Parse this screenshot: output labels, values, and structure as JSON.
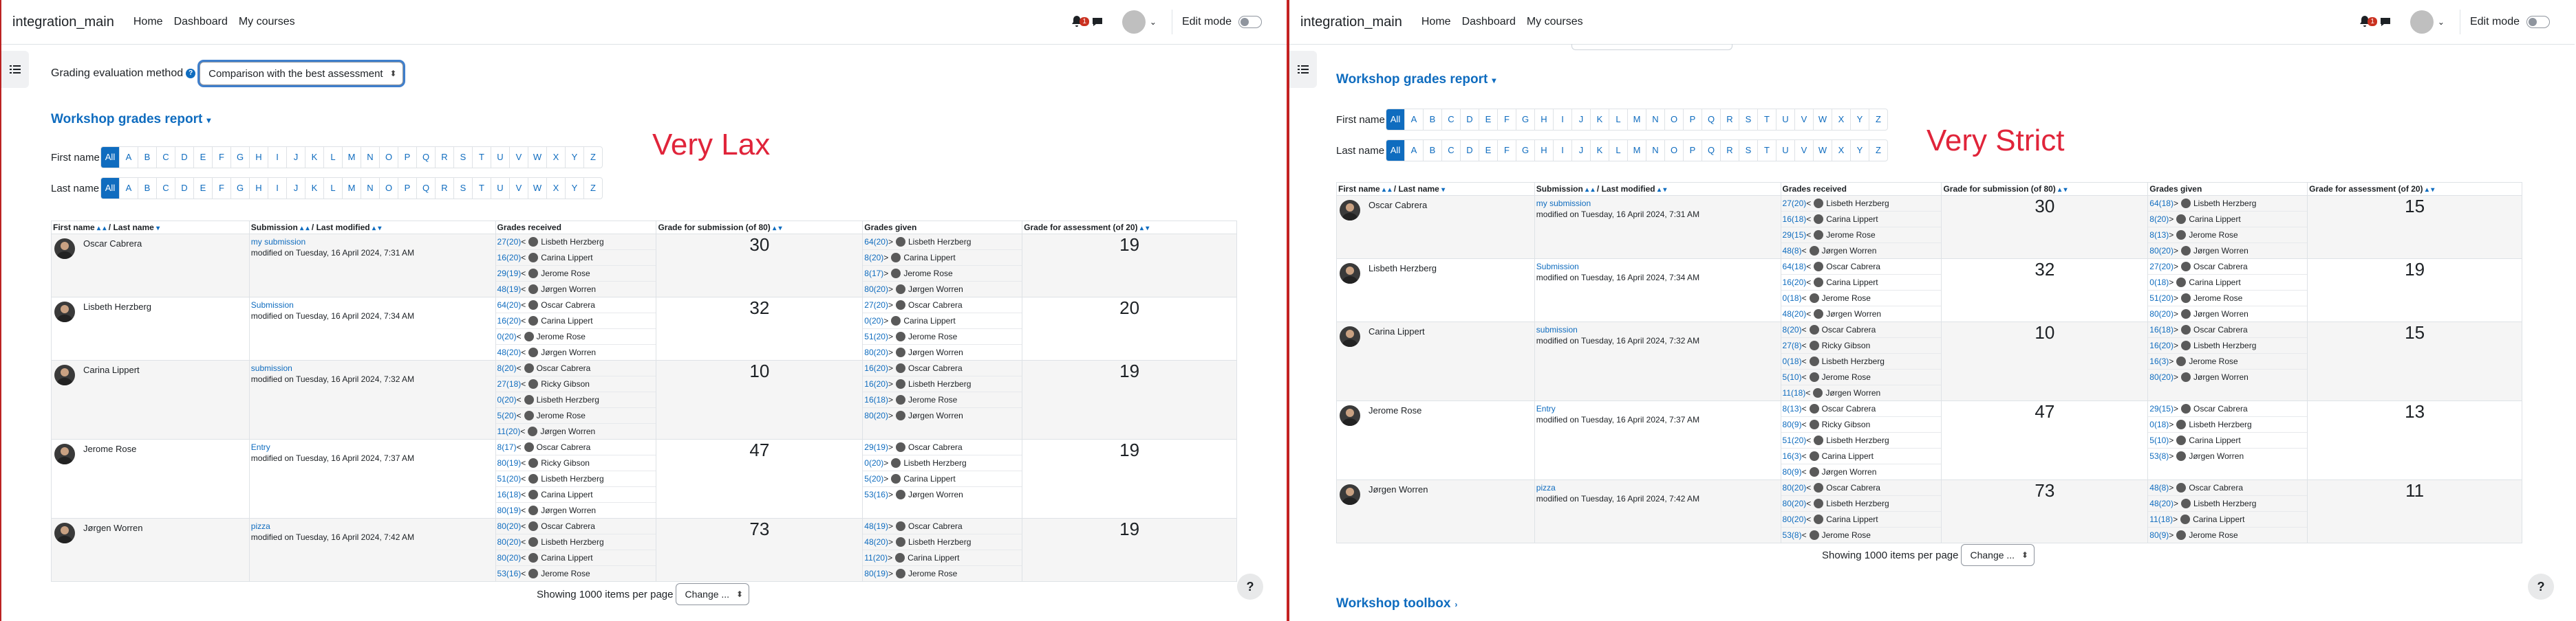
{
  "nav": {
    "site_name": "integration_main",
    "links": [
      "Home",
      "Dashboard",
      "My courses"
    ],
    "notification_count": "1",
    "edit_mode_label": "Edit mode"
  },
  "left": {
    "grading_method_label": "Grading evaluation method",
    "grading_method_value": "Comparison with the best assessment",
    "section_title": "Workshop grades report",
    "annotation": "Very Lax",
    "first_name_label": "First name",
    "last_name_label": "Last name",
    "letters": [
      "All",
      "A",
      "B",
      "C",
      "D",
      "E",
      "F",
      "G",
      "H",
      "I",
      "J",
      "K",
      "L",
      "M",
      "N",
      "O",
      "P",
      "Q",
      "R",
      "S",
      "T",
      "U",
      "V",
      "W",
      "X",
      "Y",
      "Z"
    ],
    "headers": {
      "first_name": "First name",
      "last_name": "/ Last name",
      "submission": "Submission",
      "last_modified": "/ Last modified",
      "grades_received": "Grades received",
      "grade_submission": "Grade for submission (of 80)",
      "grades_given": "Grades given",
      "grade_assessment": "Grade for assessment (of 20)"
    },
    "rows": [
      {
        "name": "Oscar Cabrera",
        "sub_title": "my submission",
        "modified": "modified on Tuesday, 16 April 2024, 7:31 AM",
        "received": [
          [
            "27",
            "(20)",
            "Lisbeth Herzberg"
          ],
          [
            "16",
            "(20)",
            "Carina Lippert"
          ],
          [
            "29",
            "(19)",
            "Jerome Rose"
          ],
          [
            "48",
            "(19)",
            "Jørgen Worren"
          ]
        ],
        "grade_sub": "30",
        "given": [
          [
            "64",
            "(20)",
            "Lisbeth Herzberg"
          ],
          [
            "8",
            "(20)",
            "Carina Lippert"
          ],
          [
            "8",
            "(17)",
            "Jerome Rose"
          ],
          [
            "80",
            "(20)",
            "Jørgen Worren"
          ]
        ],
        "grade_ass": "19"
      },
      {
        "name": "Lisbeth Herzberg",
        "sub_title": "Submission",
        "modified": "modified on Tuesday, 16 April 2024, 7:34 AM",
        "received": [
          [
            "64",
            "(20)",
            "Oscar Cabrera"
          ],
          [
            "16",
            "(20)",
            "Carina Lippert"
          ],
          [
            "0",
            "(20)",
            "Jerome Rose"
          ],
          [
            "48",
            "(20)",
            "Jørgen Worren"
          ]
        ],
        "grade_sub": "32",
        "given": [
          [
            "27",
            "(20)",
            "Oscar Cabrera"
          ],
          [
            "0",
            "(20)",
            "Carina Lippert"
          ],
          [
            "51",
            "(20)",
            "Jerome Rose"
          ],
          [
            "80",
            "(20)",
            "Jørgen Worren"
          ]
        ],
        "grade_ass": "20"
      },
      {
        "name": "Carina Lippert",
        "sub_title": "submission",
        "modified": "modified on Tuesday, 16 April 2024, 7:32 AM",
        "received": [
          [
            "8",
            "(20)",
            "Oscar Cabrera"
          ],
          [
            "27",
            "(18)",
            "Ricky Gibson"
          ],
          [
            "0",
            "(20)",
            "Lisbeth Herzberg"
          ],
          [
            "5",
            "(20)",
            "Jerome Rose"
          ],
          [
            "11",
            "(20)",
            "Jørgen Worren"
          ]
        ],
        "grade_sub": "10",
        "given": [
          [
            "16",
            "(20)",
            "Oscar Cabrera"
          ],
          [
            "16",
            "(20)",
            "Lisbeth Herzberg"
          ],
          [
            "16",
            "(18)",
            "Jerome Rose"
          ],
          [
            "80",
            "(20)",
            "Jørgen Worren"
          ]
        ],
        "grade_ass": "19"
      },
      {
        "name": "Jerome Rose",
        "sub_title": "Entry",
        "modified": "modified on Tuesday, 16 April 2024, 7:37 AM",
        "received": [
          [
            "8",
            "(17)",
            "Oscar Cabrera"
          ],
          [
            "80",
            "(19)",
            "Ricky Gibson"
          ],
          [
            "51",
            "(20)",
            "Lisbeth Herzberg"
          ],
          [
            "16",
            "(18)",
            "Carina Lippert"
          ],
          [
            "80",
            "(19)",
            "Jørgen Worren"
          ]
        ],
        "grade_sub": "47",
        "given": [
          [
            "29",
            "(19)",
            "Oscar Cabrera"
          ],
          [
            "0",
            "(20)",
            "Lisbeth Herzberg"
          ],
          [
            "5",
            "(20)",
            "Carina Lippert"
          ],
          [
            "53",
            "(16)",
            "Jørgen Worren"
          ]
        ],
        "grade_ass": "19"
      },
      {
        "name": "Jørgen Worren",
        "sub_title": "pizza",
        "modified": "modified on Tuesday, 16 April 2024, 7:42 AM",
        "received": [
          [
            "80",
            "(20)",
            "Oscar Cabrera"
          ],
          [
            "80",
            "(20)",
            "Lisbeth Herzberg"
          ],
          [
            "80",
            "(20)",
            "Carina Lippert"
          ],
          [
            "53",
            "(16)",
            "Jerome Rose"
          ]
        ],
        "grade_sub": "73",
        "given": [
          [
            "48",
            "(19)",
            "Oscar Cabrera"
          ],
          [
            "48",
            "(20)",
            "Lisbeth Herzberg"
          ],
          [
            "11",
            "(20)",
            "Carina Lippert"
          ],
          [
            "80",
            "(19)",
            "Jerome Rose"
          ]
        ],
        "grade_ass": "19"
      }
    ],
    "showing_label": "Showing 1000 items per page",
    "change_label": "Change ..."
  },
  "right": {
    "section_title": "Workshop grades report",
    "annotation": "Very Strict",
    "first_name_label": "First name",
    "last_name_label": "Last name",
    "letters": [
      "All",
      "A",
      "B",
      "C",
      "D",
      "E",
      "F",
      "G",
      "H",
      "I",
      "J",
      "K",
      "L",
      "M",
      "N",
      "O",
      "P",
      "Q",
      "R",
      "S",
      "T",
      "U",
      "V",
      "W",
      "X",
      "Y",
      "Z"
    ],
    "headers": {
      "first_name": "First name",
      "last_name": "/ Last name",
      "submission": "Submission",
      "last_modified": "/ Last modified",
      "grades_received": "Grades received",
      "grade_submission": "Grade for submission (of 80)",
      "grades_given": "Grades given",
      "grade_assessment": "Grade for assessment (of 20)"
    },
    "rows": [
      {
        "name": "Oscar Cabrera",
        "sub_title": "my submission",
        "modified": "modified on Tuesday, 16 April 2024, 7:31 AM",
        "received": [
          [
            "27",
            "(20)",
            "Lisbeth Herzberg"
          ],
          [
            "16",
            "(18)",
            "Carina Lippert"
          ],
          [
            "29",
            "(15)",
            "Jerome Rose"
          ],
          [
            "48",
            "(8)",
            "Jørgen Worren"
          ]
        ],
        "grade_sub": "30",
        "given": [
          [
            "64",
            "(18)",
            "Lisbeth Herzberg"
          ],
          [
            "8",
            "(20)",
            "Carina Lippert"
          ],
          [
            "8",
            "(13)",
            "Jerome Rose"
          ],
          [
            "80",
            "(20)",
            "Jørgen Worren"
          ]
        ],
        "grade_ass": "15"
      },
      {
        "name": "Lisbeth Herzberg",
        "sub_title": "Submission",
        "modified": "modified on Tuesday, 16 April 2024, 7:34 AM",
        "received": [
          [
            "64",
            "(18)",
            "Oscar Cabrera"
          ],
          [
            "16",
            "(20)",
            "Carina Lippert"
          ],
          [
            "0",
            "(18)",
            "Jerome Rose"
          ],
          [
            "48",
            "(20)",
            "Jørgen Worren"
          ]
        ],
        "grade_sub": "32",
        "given": [
          [
            "27",
            "(20)",
            "Oscar Cabrera"
          ],
          [
            "0",
            "(18)",
            "Carina Lippert"
          ],
          [
            "51",
            "(20)",
            "Jerome Rose"
          ],
          [
            "80",
            "(20)",
            "Jørgen Worren"
          ]
        ],
        "grade_ass": "19"
      },
      {
        "name": "Carina Lippert",
        "sub_title": "submission",
        "modified": "modified on Tuesday, 16 April 2024, 7:32 AM",
        "received": [
          [
            "8",
            "(20)",
            "Oscar Cabrera"
          ],
          [
            "27",
            "(8)",
            "Ricky Gibson"
          ],
          [
            "0",
            "(18)",
            "Lisbeth Herzberg"
          ],
          [
            "5",
            "(10)",
            "Jerome Rose"
          ],
          [
            "11",
            "(18)",
            "Jørgen Worren"
          ]
        ],
        "grade_sub": "10",
        "given": [
          [
            "16",
            "(18)",
            "Oscar Cabrera"
          ],
          [
            "16",
            "(20)",
            "Lisbeth Herzberg"
          ],
          [
            "16",
            "(3)",
            "Jerome Rose"
          ],
          [
            "80",
            "(20)",
            "Jørgen Worren"
          ]
        ],
        "grade_ass": "15"
      },
      {
        "name": "Jerome Rose",
        "sub_title": "Entry",
        "modified": "modified on Tuesday, 16 April 2024, 7:37 AM",
        "received": [
          [
            "8",
            "(13)",
            "Oscar Cabrera"
          ],
          [
            "80",
            "(9)",
            "Ricky Gibson"
          ],
          [
            "51",
            "(20)",
            "Lisbeth Herzberg"
          ],
          [
            "16",
            "(3)",
            "Carina Lippert"
          ],
          [
            "80",
            "(9)",
            "Jørgen Worren"
          ]
        ],
        "grade_sub": "47",
        "given": [
          [
            "29",
            "(15)",
            "Oscar Cabrera"
          ],
          [
            "0",
            "(18)",
            "Lisbeth Herzberg"
          ],
          [
            "5",
            "(10)",
            "Carina Lippert"
          ],
          [
            "53",
            "(8)",
            "Jørgen Worren"
          ]
        ],
        "grade_ass": "13"
      },
      {
        "name": "Jørgen Worren",
        "sub_title": "pizza",
        "modified": "modified on Tuesday, 16 April 2024, 7:42 AM",
        "received": [
          [
            "80",
            "(20)",
            "Oscar Cabrera"
          ],
          [
            "80",
            "(20)",
            "Lisbeth Herzberg"
          ],
          [
            "80",
            "(20)",
            "Carina Lippert"
          ],
          [
            "53",
            "(8)",
            "Jerome Rose"
          ]
        ],
        "grade_sub": "73",
        "given": [
          [
            "48",
            "(8)",
            "Oscar Cabrera"
          ],
          [
            "48",
            "(20)",
            "Lisbeth Herzberg"
          ],
          [
            "11",
            "(18)",
            "Carina Lippert"
          ],
          [
            "80",
            "(9)",
            "Jerome Rose"
          ]
        ],
        "grade_ass": "11"
      }
    ],
    "showing_label": "Showing 1000 items per page",
    "change_label": "Change ...",
    "toolbox_title": "Workshop toolbox"
  },
  "colors": {
    "accent": "#0f6cbf",
    "annotation": "#e0243a",
    "badge": "#ca3120"
  }
}
